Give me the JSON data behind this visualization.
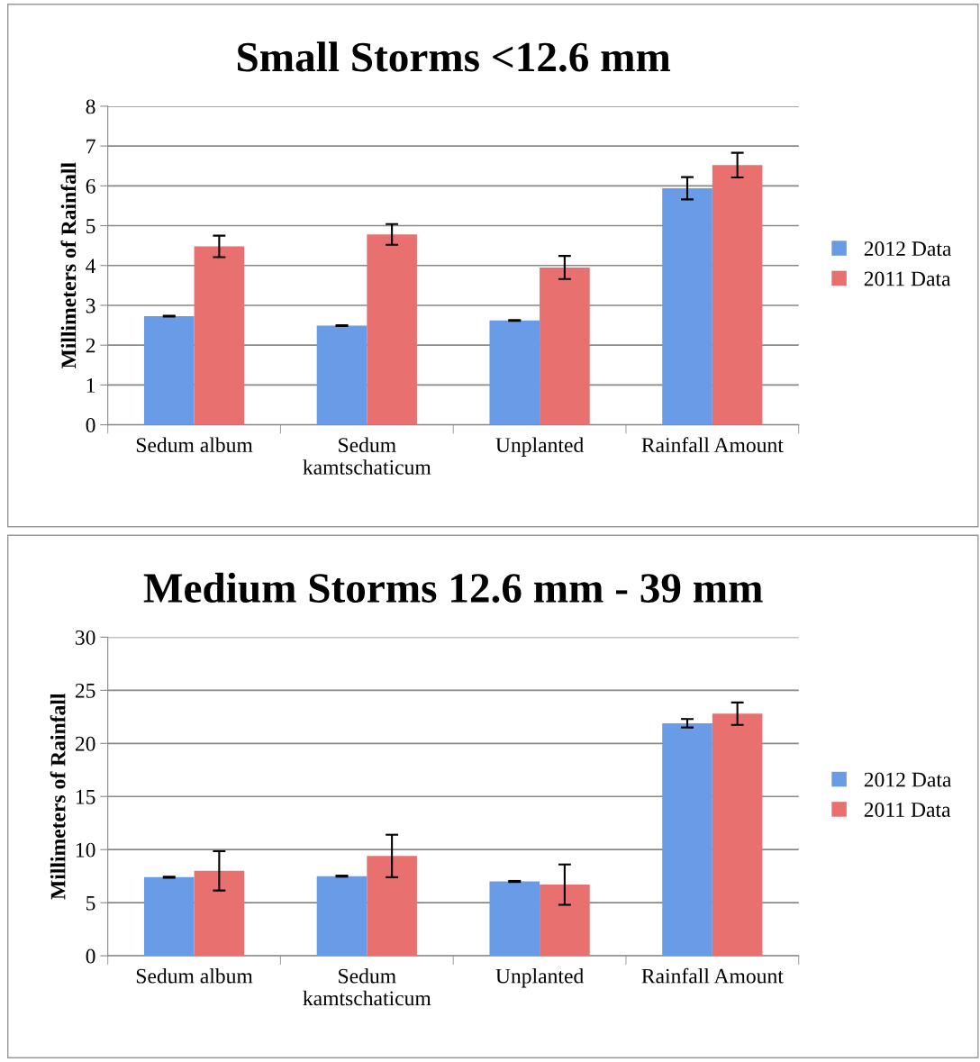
{
  "chart_data": [
    {
      "type": "bar",
      "title": "Small Storms <12.6 mm",
      "ylabel": "Millimeters of Rainfall",
      "categories": [
        "Sedum album",
        "Sedum\nkamtschaticum",
        "Unplanted",
        "Rainfall Amount"
      ],
      "series": [
        {
          "name": "2012 Data",
          "color": "#6a9be6",
          "values": [
            2.73,
            2.49,
            2.62,
            5.94
          ],
          "errors": [
            0.01,
            0.01,
            0.01,
            0.28
          ]
        },
        {
          "name": "2011 Data",
          "color": "#e8716f",
          "values": [
            4.48,
            4.78,
            3.95,
            6.52
          ],
          "errors": [
            0.27,
            0.26,
            0.29,
            0.31
          ]
        }
      ],
      "ylim": [
        0,
        8
      ],
      "yticks": [
        0,
        1,
        2,
        3,
        4,
        5,
        6,
        7,
        8
      ],
      "grid": "y",
      "legend": "right"
    },
    {
      "type": "bar",
      "title": "Medium Storms 12.6 mm - 39 mm",
      "ylabel": "Millimeters of Rainfall",
      "categories": [
        "Sedum album",
        "Sedum\nkamtschaticum",
        "Unplanted",
        "Rainfall Amount"
      ],
      "series": [
        {
          "name": "2012 Data",
          "color": "#6a9be6",
          "values": [
            7.4,
            7.5,
            7.0,
            21.9
          ],
          "errors": [
            0.05,
            0.05,
            0.05,
            0.4
          ]
        },
        {
          "name": "2011 Data",
          "color": "#e8716f",
          "values": [
            8.0,
            9.4,
            6.7,
            22.8
          ],
          "errors": [
            1.85,
            2.0,
            1.9,
            1.05
          ]
        }
      ],
      "ylim": [
        0,
        30
      ],
      "yticks": [
        0,
        5,
        10,
        15,
        20,
        25,
        30
      ],
      "grid": "y",
      "legend": "right"
    }
  ]
}
